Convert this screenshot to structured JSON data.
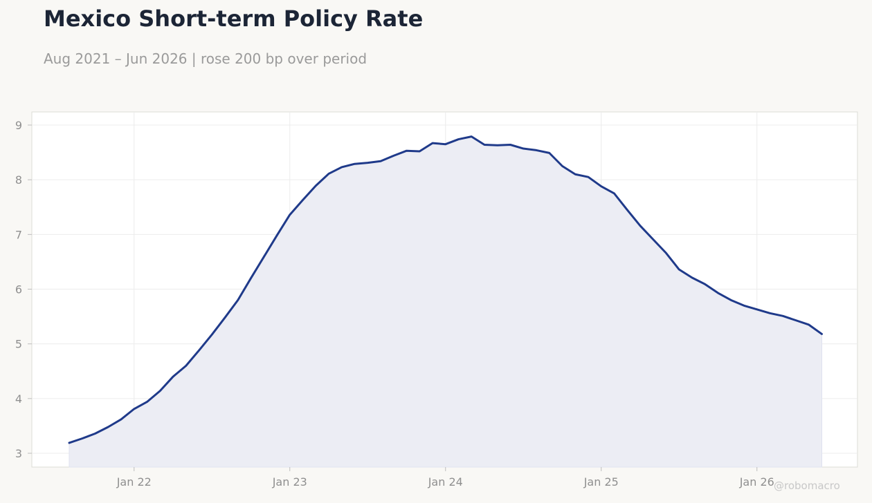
{
  "header": {
    "title": "Mexico Short-term Policy Rate",
    "subtitle": "Aug 2021 – Jun 2026 | rose 200 bp over period"
  },
  "watermark": "@robomacro",
  "colors": {
    "line": "#1f3a8a",
    "fill": "#ecedf4",
    "background": "#f9f8f5",
    "plot_background": "#ffffff"
  },
  "chart_data": {
    "type": "area",
    "title": "Mexico Short-term Policy Rate",
    "xlabel": "",
    "ylabel": "",
    "ylim": [
      2.75,
      9.25
    ],
    "grid": true,
    "x": [
      "2021-08",
      "2021-09",
      "2021-10",
      "2021-11",
      "2021-12",
      "2022-01",
      "2022-02",
      "2022-03",
      "2022-04",
      "2022-05",
      "2022-06",
      "2022-07",
      "2022-08",
      "2022-09",
      "2022-10",
      "2022-11",
      "2022-12",
      "2023-01",
      "2023-02",
      "2023-03",
      "2023-04",
      "2023-05",
      "2023-06",
      "2023-07",
      "2023-08",
      "2023-09",
      "2023-10",
      "2023-11",
      "2023-12",
      "2024-01",
      "2024-02",
      "2024-03",
      "2024-04",
      "2024-05",
      "2024-06",
      "2024-07",
      "2024-08",
      "2024-09",
      "2024-10",
      "2024-11",
      "2024-12",
      "2025-01",
      "2025-02",
      "2025-03",
      "2025-04",
      "2025-05",
      "2025-06",
      "2025-07",
      "2025-08",
      "2025-09",
      "2025-10",
      "2025-11",
      "2025-12",
      "2026-01",
      "2026-02",
      "2026-03",
      "2026-04",
      "2026-05",
      "2026-06"
    ],
    "series": [
      {
        "values": [
          3.19,
          3.27,
          3.36,
          3.48,
          3.62,
          3.81,
          3.94,
          4.14,
          4.4,
          4.6,
          4.88,
          5.17,
          5.48,
          5.8,
          6.2,
          6.59,
          6.98,
          7.36,
          7.63,
          7.89,
          8.11,
          8.23,
          8.29,
          8.31,
          8.34,
          8.44,
          8.53,
          8.52,
          8.67,
          8.65,
          8.74,
          8.79,
          8.64,
          8.63,
          8.64,
          8.57,
          8.54,
          8.49,
          8.25,
          8.1,
          8.05,
          7.88,
          7.75,
          7.45,
          7.16,
          6.91,
          6.66,
          6.36,
          6.21,
          6.09,
          5.93,
          5.8,
          5.7,
          5.63,
          5.56,
          5.51,
          5.43,
          5.35,
          5.18
        ]
      }
    ],
    "x_ticks": [
      {
        "date": "2022-01",
        "label": "Jan 22"
      },
      {
        "date": "2023-01",
        "label": "Jan 23"
      },
      {
        "date": "2024-01",
        "label": "Jan 24"
      },
      {
        "date": "2025-01",
        "label": "Jan 25"
      },
      {
        "date": "2026-01",
        "label": "Jan 26"
      }
    ],
    "y_ticks": [
      3,
      4,
      5,
      6,
      7,
      8,
      9
    ]
  }
}
